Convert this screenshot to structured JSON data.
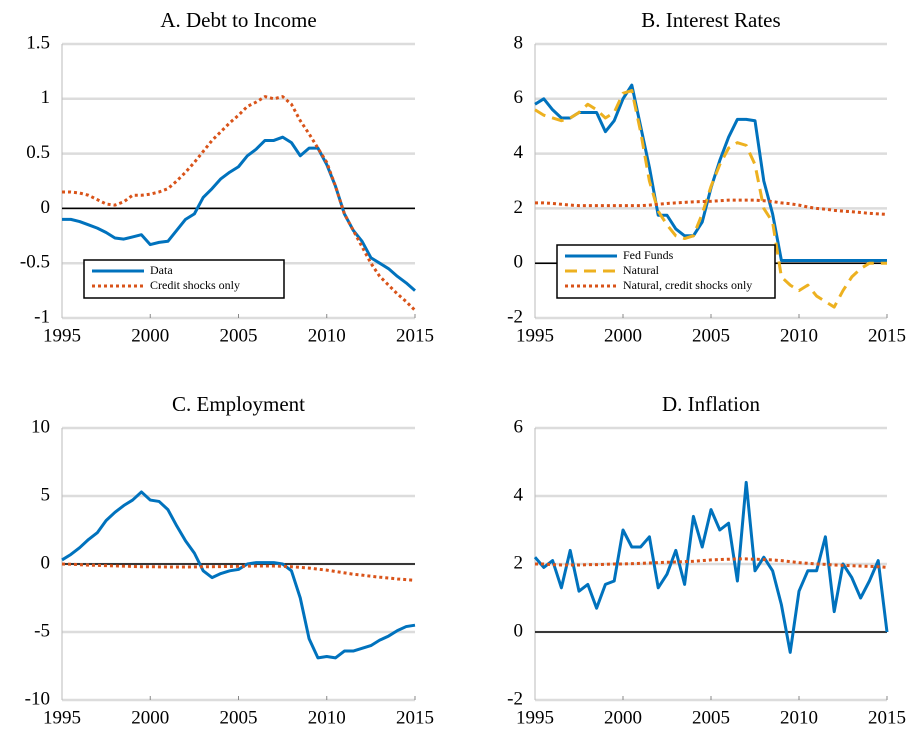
{
  "chart_data": [
    {
      "type": "line",
      "title": "A. Debt to Income",
      "legend": "lower left",
      "grid": true,
      "xlim": [
        1995,
        2015
      ],
      "xticks": [
        1995,
        2000,
        2005,
        2010,
        2015
      ],
      "ylim": [
        -1,
        1.5
      ],
      "yticks": [
        -1,
        -0.5,
        0,
        0.5,
        1,
        1.5
      ],
      "x": [
        1995,
        1995.5,
        1996,
        1996.5,
        1997,
        1997.5,
        1998,
        1998.5,
        1999,
        1999.5,
        2000,
        2000.5,
        2001,
        2001.5,
        2002,
        2002.5,
        2003,
        2003.5,
        2004,
        2004.5,
        2005,
        2005.5,
        2006,
        2006.5,
        2007,
        2007.5,
        2008,
        2008.5,
        2009,
        2009.5,
        2010,
        2010.5,
        2011,
        2011.5,
        2012,
        2012.5,
        2013,
        2013.5,
        2014,
        2014.5,
        2015
      ],
      "series": [
        {
          "name": "Data",
          "color": "#0072BD",
          "style": "solid",
          "values": [
            -0.1,
            -0.1,
            -0.12,
            -0.15,
            -0.18,
            -0.22,
            -0.27,
            -0.28,
            -0.26,
            -0.24,
            -0.33,
            -0.31,
            -0.3,
            -0.2,
            -0.1,
            -0.05,
            0.1,
            0.18,
            0.27,
            0.33,
            0.38,
            0.48,
            0.54,
            0.62,
            0.62,
            0.65,
            0.6,
            0.48,
            0.55,
            0.55,
            0.4,
            0.2,
            -0.05,
            -0.2,
            -0.3,
            -0.45,
            -0.5,
            -0.55,
            -0.62,
            -0.68,
            -0.75
          ]
        },
        {
          "name": "Credit shocks only",
          "color": "#D95319",
          "style": "dotted",
          "values": [
            0.15,
            0.15,
            0.14,
            0.12,
            0.08,
            0.04,
            0.03,
            0.06,
            0.12,
            0.12,
            0.13,
            0.15,
            0.18,
            0.25,
            0.33,
            0.42,
            0.52,
            0.62,
            0.7,
            0.78,
            0.85,
            0.93,
            0.97,
            1.02,
            1.0,
            1.02,
            0.95,
            0.8,
            0.68,
            0.55,
            0.42,
            0.2,
            -0.05,
            -0.2,
            -0.35,
            -0.5,
            -0.62,
            -0.7,
            -0.78,
            -0.85,
            -0.93
          ]
        }
      ]
    },
    {
      "type": "line",
      "title": "B. Interest Rates",
      "legend": "lower left",
      "grid": true,
      "xlim": [
        1995,
        2015
      ],
      "xticks": [
        1995,
        2000,
        2005,
        2010,
        2015
      ],
      "ylim": [
        -2,
        8
      ],
      "yticks": [
        -2,
        0,
        2,
        4,
        6,
        8
      ],
      "x": [
        1995,
        1995.5,
        1996,
        1996.5,
        1997,
        1997.5,
        1998,
        1998.5,
        1999,
        1999.5,
        2000,
        2000.5,
        2001,
        2001.5,
        2002,
        2002.5,
        2003,
        2003.5,
        2004,
        2004.5,
        2005,
        2005.5,
        2006,
        2006.5,
        2007,
        2007.5,
        2008,
        2008.5,
        2009,
        2009.5,
        2010,
        2010.5,
        2011,
        2011.5,
        2012,
        2012.5,
        2013,
        2013.5,
        2014,
        2014.5,
        2015
      ],
      "series": [
        {
          "name": "Fed Funds",
          "color": "#0072BD",
          "style": "solid",
          "values": [
            5.8,
            6.0,
            5.6,
            5.3,
            5.3,
            5.5,
            5.5,
            5.5,
            4.8,
            5.2,
            6.0,
            6.5,
            5.0,
            3.5,
            1.75,
            1.75,
            1.25,
            1.0,
            1.0,
            1.5,
            2.75,
            3.75,
            4.6,
            5.25,
            5.25,
            5.2,
            3.0,
            1.8,
            0.1,
            0.1,
            0.1,
            0.1,
            0.1,
            0.1,
            0.1,
            0.1,
            0.1,
            0.1,
            0.1,
            0.1,
            0.1
          ]
        },
        {
          "name": "Natural",
          "color": "#EDB120",
          "style": "dashed",
          "values": [
            5.6,
            5.4,
            5.3,
            5.2,
            5.3,
            5.5,
            5.8,
            5.6,
            5.3,
            5.5,
            6.2,
            6.3,
            4.8,
            3.0,
            1.9,
            1.4,
            1.0,
            0.9,
            1.0,
            1.8,
            2.8,
            3.6,
            4.2,
            4.4,
            4.3,
            3.6,
            2.0,
            1.5,
            -0.5,
            -0.8,
            -1.0,
            -0.8,
            -1.2,
            -1.4,
            -1.6,
            -1.0,
            -0.5,
            -0.2,
            0.0,
            0.0,
            0.0
          ]
        },
        {
          "name": "Natural, credit shocks only",
          "color": "#D95319",
          "style": "dotted",
          "values": [
            2.2,
            2.2,
            2.18,
            2.15,
            2.12,
            2.1,
            2.1,
            2.1,
            2.1,
            2.1,
            2.1,
            2.1,
            2.1,
            2.12,
            2.15,
            2.18,
            2.2,
            2.22,
            2.24,
            2.25,
            2.26,
            2.28,
            2.3,
            2.3,
            2.3,
            2.3,
            2.28,
            2.25,
            2.2,
            2.17,
            2.12,
            2.05,
            2.0,
            1.97,
            1.93,
            1.9,
            1.88,
            1.85,
            1.82,
            1.8,
            1.78
          ]
        }
      ]
    },
    {
      "type": "line",
      "title": "C. Employment",
      "grid": true,
      "xlim": [
        1995,
        2015
      ],
      "xticks": [
        1995,
        2000,
        2005,
        2010,
        2015
      ],
      "ylim": [
        -10,
        10
      ],
      "yticks": [
        -10,
        -5,
        0,
        5,
        10
      ],
      "x": [
        1995,
        1995.5,
        1996,
        1996.5,
        1997,
        1997.5,
        1998,
        1998.5,
        1999,
        1999.5,
        2000,
        2000.5,
        2001,
        2001.5,
        2002,
        2002.5,
        2003,
        2003.5,
        2004,
        2004.5,
        2005,
        2005.5,
        2006,
        2006.5,
        2007,
        2007.5,
        2008,
        2008.5,
        2009,
        2009.5,
        2010,
        2010.5,
        2011,
        2011.5,
        2012,
        2012.5,
        2013,
        2013.5,
        2014,
        2014.5,
        2015
      ],
      "series": [
        {
          "color": "#0072BD",
          "style": "solid",
          "values": [
            0.3,
            0.7,
            1.2,
            1.8,
            2.3,
            3.2,
            3.8,
            4.3,
            4.7,
            5.3,
            4.7,
            4.6,
            4.0,
            2.8,
            1.7,
            0.8,
            -0.5,
            -1.0,
            -0.7,
            -0.5,
            -0.4,
            0.0,
            0.1,
            0.1,
            0.1,
            0.0,
            -0.5,
            -2.5,
            -5.5,
            -6.9,
            -6.8,
            -6.9,
            -6.4,
            -6.4,
            -6.2,
            -6.0,
            -5.6,
            -5.3,
            -4.9,
            -4.6,
            -4.5
          ]
        },
        {
          "color": "#D95319",
          "style": "dotted",
          "values": [
            0,
            -0.02,
            -0.05,
            -0.08,
            -0.1,
            -0.12,
            -0.14,
            -0.16,
            -0.18,
            -0.2,
            -0.2,
            -0.21,
            -0.22,
            -0.22,
            -0.22,
            -0.21,
            -0.2,
            -0.2,
            -0.19,
            -0.18,
            -0.17,
            -0.16,
            -0.15,
            -0.15,
            -0.15,
            -0.17,
            -0.2,
            -0.25,
            -0.3,
            -0.38,
            -0.45,
            -0.55,
            -0.65,
            -0.75,
            -0.82,
            -0.9,
            -0.97,
            -1.03,
            -1.1,
            -1.15,
            -1.2
          ]
        }
      ]
    },
    {
      "type": "line",
      "title": "D. Inflation",
      "grid": true,
      "xlim": [
        1995,
        2015
      ],
      "xticks": [
        1995,
        2000,
        2005,
        2010,
        2015
      ],
      "ylim": [
        -2,
        6
      ],
      "yticks": [
        -2,
        0,
        2,
        4,
        6
      ],
      "x": [
        1995,
        1995.5,
        1996,
        1996.5,
        1997,
        1997.5,
        1998,
        1998.5,
        1999,
        1999.5,
        2000,
        2000.5,
        2001,
        2001.5,
        2002,
        2002.5,
        2003,
        2003.5,
        2004,
        2004.5,
        2005,
        2005.5,
        2006,
        2006.5,
        2007,
        2007.5,
        2008,
        2008.5,
        2009,
        2009.5,
        2010,
        2010.5,
        2011,
        2011.5,
        2012,
        2012.5,
        2013,
        2013.5,
        2014,
        2014.5,
        2015
      ],
      "series": [
        {
          "color": "#0072BD",
          "style": "solid",
          "values": [
            2.2,
            1.9,
            2.1,
            1.3,
            2.4,
            1.2,
            1.4,
            0.7,
            1.4,
            1.5,
            3.0,
            2.5,
            2.5,
            2.8,
            1.3,
            1.7,
            2.4,
            1.4,
            3.4,
            2.5,
            3.6,
            3.0,
            3.2,
            1.5,
            4.4,
            1.8,
            2.2,
            1.8,
            0.8,
            -0.6,
            1.2,
            1.8,
            1.8,
            2.8,
            0.6,
            2.0,
            1.6,
            1.0,
            1.5,
            2.1,
            0.0
          ]
        },
        {
          "color": "#D95319",
          "style": "dotted",
          "values": [
            2.0,
            2.0,
            1.98,
            1.97,
            1.97,
            1.97,
            1.98,
            1.98,
            1.99,
            2.0,
            2.0,
            2.01,
            2.02,
            2.03,
            2.04,
            2.05,
            2.06,
            2.07,
            2.08,
            2.1,
            2.12,
            2.13,
            2.14,
            2.15,
            2.15,
            2.14,
            2.13,
            2.12,
            2.1,
            2.07,
            2.04,
            2.02,
            2.0,
            1.99,
            1.97,
            1.96,
            1.95,
            1.94,
            1.93,
            1.92,
            1.9
          ]
        }
      ]
    }
  ]
}
